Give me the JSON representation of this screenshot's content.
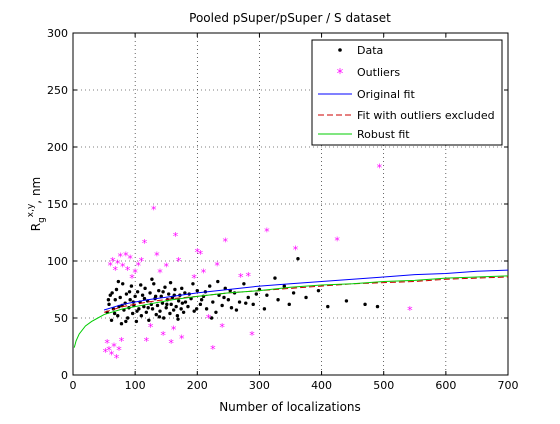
{
  "chart_data": {
    "type": "scatter",
    "title": "Pooled pSuper/pSuper / S dataset",
    "xlabel": "Number of localizations",
    "ylabel": {
      "base": "R",
      "sub": "g",
      "sup": "x,y",
      "unit": ", nm"
    },
    "xlim": [
      0,
      700
    ],
    "ylim": [
      0,
      300
    ],
    "xticks": [
      0,
      100,
      200,
      300,
      400,
      500,
      600,
      700
    ],
    "yticks": [
      0,
      50,
      100,
      150,
      200,
      250,
      300
    ],
    "grid": true,
    "legend_position": "top-right",
    "legend": [
      "Data",
      "Outliers",
      "Original fit",
      "Fit with outliers excluded",
      "Robust fit"
    ],
    "series": [
      {
        "name": "Data",
        "kind": "points",
        "marker": "dot",
        "color": "#000000",
        "points": [
          [
            55,
            55
          ],
          [
            58,
            62
          ],
          [
            60,
            70
          ],
          [
            62,
            48
          ],
          [
            65,
            58
          ],
          [
            68,
            66
          ],
          [
            70,
            75
          ],
          [
            72,
            52
          ],
          [
            74,
            60
          ],
          [
            76,
            68
          ],
          [
            78,
            45
          ],
          [
            80,
            80
          ],
          [
            82,
            57
          ],
          [
            84,
            63
          ],
          [
            86,
            71
          ],
          [
            88,
            50
          ],
          [
            90,
            59
          ],
          [
            92,
            66
          ],
          [
            94,
            78
          ],
          [
            96,
            54
          ],
          [
            98,
            61
          ],
          [
            100,
            69
          ],
          [
            102,
            47
          ],
          [
            104,
            73
          ],
          [
            106,
            58
          ],
          [
            108,
            64
          ],
          [
            110,
            52
          ],
          [
            112,
            70
          ],
          [
            114,
            60
          ],
          [
            116,
            76
          ],
          [
            118,
            55
          ],
          [
            120,
            65
          ],
          [
            122,
            48
          ],
          [
            124,
            72
          ],
          [
            126,
            62
          ],
          [
            128,
            58
          ],
          [
            130,
            80
          ],
          [
            132,
            67
          ],
          [
            134,
            53
          ],
          [
            136,
            61
          ],
          [
            138,
            74
          ],
          [
            140,
            56
          ],
          [
            142,
            69
          ],
          [
            144,
            63
          ],
          [
            146,
            50
          ],
          [
            148,
            77
          ],
          [
            150,
            59
          ],
          [
            152,
            66
          ],
          [
            154,
            71
          ],
          [
            156,
            54
          ],
          [
            158,
            62
          ],
          [
            160,
            68
          ],
          [
            162,
            57
          ],
          [
            164,
            75
          ],
          [
            166,
            60
          ],
          [
            168,
            52
          ],
          [
            170,
            65
          ],
          [
            172,
            70
          ],
          [
            174,
            58
          ],
          [
            176,
            63
          ],
          [
            178,
            55
          ],
          [
            180,
            72
          ],
          [
            185,
            60
          ],
          [
            190,
            67
          ],
          [
            195,
            56
          ],
          [
            200,
            74
          ],
          [
            205,
            62
          ],
          [
            210,
            69
          ],
          [
            215,
            58
          ],
          [
            220,
            78
          ],
          [
            225,
            64
          ],
          [
            230,
            55
          ],
          [
            235,
            70
          ],
          [
            240,
            61
          ],
          [
            245,
            76
          ],
          [
            250,
            66
          ],
          [
            255,
            59
          ],
          [
            260,
            72
          ],
          [
            268,
            64
          ],
          [
            275,
            80
          ],
          [
            282,
            68
          ],
          [
            290,
            62
          ],
          [
            300,
            75
          ],
          [
            312,
            70
          ],
          [
            325,
            85
          ],
          [
            340,
            78
          ],
          [
            355,
            72
          ],
          [
            362,
            102
          ],
          [
            375,
            68
          ],
          [
            395,
            74
          ],
          [
            410,
            60
          ],
          [
            440,
            65
          ],
          [
            470,
            62
          ],
          [
            490,
            60
          ],
          [
            57,
            66
          ],
          [
            63,
            72
          ],
          [
            67,
            54
          ],
          [
            73,
            82
          ],
          [
            79,
            61
          ],
          [
            85,
            47
          ],
          [
            91,
            73
          ],
          [
            97,
            64
          ],
          [
            103,
            56
          ],
          [
            109,
            79
          ],
          [
            115,
            67
          ],
          [
            121,
            59
          ],
          [
            127,
            84
          ],
          [
            133,
            69
          ],
          [
            139,
            51
          ],
          [
            145,
            73
          ],
          [
            151,
            62
          ],
          [
            157,
            81
          ],
          [
            163,
            70
          ],
          [
            169,
            49
          ],
          [
            175,
            76
          ],
          [
            181,
            64
          ],
          [
            187,
            71
          ],
          [
            193,
            80
          ],
          [
            199,
            58
          ],
          [
            207,
            66
          ],
          [
            213,
            73
          ],
          [
            223,
            50
          ],
          [
            233,
            82
          ],
          [
            243,
            68
          ],
          [
            253,
            74
          ],
          [
            263,
            57
          ],
          [
            278,
            63
          ],
          [
            295,
            71
          ],
          [
            308,
            58
          ],
          [
            330,
            66
          ],
          [
            348,
            62
          ]
        ]
      },
      {
        "name": "Outliers",
        "kind": "points",
        "marker": "asterisk",
        "color": "#ff00ff",
        "points": [
          [
            52,
            20
          ],
          [
            55,
            28
          ],
          [
            58,
            22
          ],
          [
            60,
            96
          ],
          [
            62,
            18
          ],
          [
            64,
            100
          ],
          [
            66,
            25
          ],
          [
            68,
            92
          ],
          [
            70,
            15
          ],
          [
            72,
            98
          ],
          [
            74,
            22
          ],
          [
            76,
            104
          ],
          [
            78,
            30
          ],
          [
            80,
            95
          ],
          [
            85,
            105
          ],
          [
            88,
            92
          ],
          [
            92,
            102
          ],
          [
            95,
            85
          ],
          [
            100,
            90
          ],
          [
            105,
            96
          ],
          [
            110,
            100
          ],
          [
            115,
            116
          ],
          [
            118,
            30
          ],
          [
            125,
            42
          ],
          [
            130,
            145
          ],
          [
            135,
            105
          ],
          [
            140,
            90
          ],
          [
            145,
            35
          ],
          [
            150,
            95
          ],
          [
            158,
            28
          ],
          [
            162,
            40
          ],
          [
            165,
            122
          ],
          [
            170,
            100
          ],
          [
            175,
            32
          ],
          [
            195,
            85
          ],
          [
            200,
            108
          ],
          [
            205,
            106
          ],
          [
            210,
            90
          ],
          [
            218,
            50
          ],
          [
            225,
            23
          ],
          [
            232,
            96
          ],
          [
            240,
            42
          ],
          [
            245,
            117
          ],
          [
            270,
            86
          ],
          [
            282,
            87
          ],
          [
            288,
            35
          ],
          [
            312,
            126
          ],
          [
            358,
            110
          ],
          [
            425,
            118
          ],
          [
            493,
            182
          ],
          [
            542,
            57
          ]
        ]
      },
      {
        "name": "Original fit",
        "kind": "line",
        "style": "solid",
        "color": "#0000ff",
        "x": [
          50,
          80,
          120,
          160,
          200,
          250,
          300,
          350,
          400,
          450,
          500,
          550,
          600,
          650,
          700
        ],
        "y": [
          57,
          62,
          66,
          69,
          72,
          75,
          78,
          80,
          82,
          84,
          86,
          88,
          89,
          91,
          92
        ]
      },
      {
        "name": "Fit with outliers excluded",
        "kind": "line",
        "style": "dashed",
        "color": "#cc0000",
        "x": [
          50,
          80,
          120,
          160,
          200,
          250,
          300,
          350,
          400,
          450,
          500,
          550,
          600,
          650,
          700
        ],
        "y": [
          55,
          60,
          64,
          67,
          69,
          72,
          74,
          76,
          78,
          80,
          81,
          82,
          84,
          85,
          86
        ]
      },
      {
        "name": "Robust fit",
        "kind": "line",
        "style": "solid",
        "color": "#00cc00",
        "x": [
          2,
          5,
          10,
          20,
          30,
          40,
          50,
          80,
          120,
          160,
          200,
          250,
          300,
          350,
          400,
          450,
          500,
          550,
          600,
          650,
          700
        ],
        "y": [
          24,
          30,
          36,
          43,
          47,
          50,
          53,
          58,
          62,
          66,
          69,
          72,
          74,
          77,
          79,
          80,
          82,
          83,
          85,
          86,
          87
        ]
      }
    ]
  }
}
